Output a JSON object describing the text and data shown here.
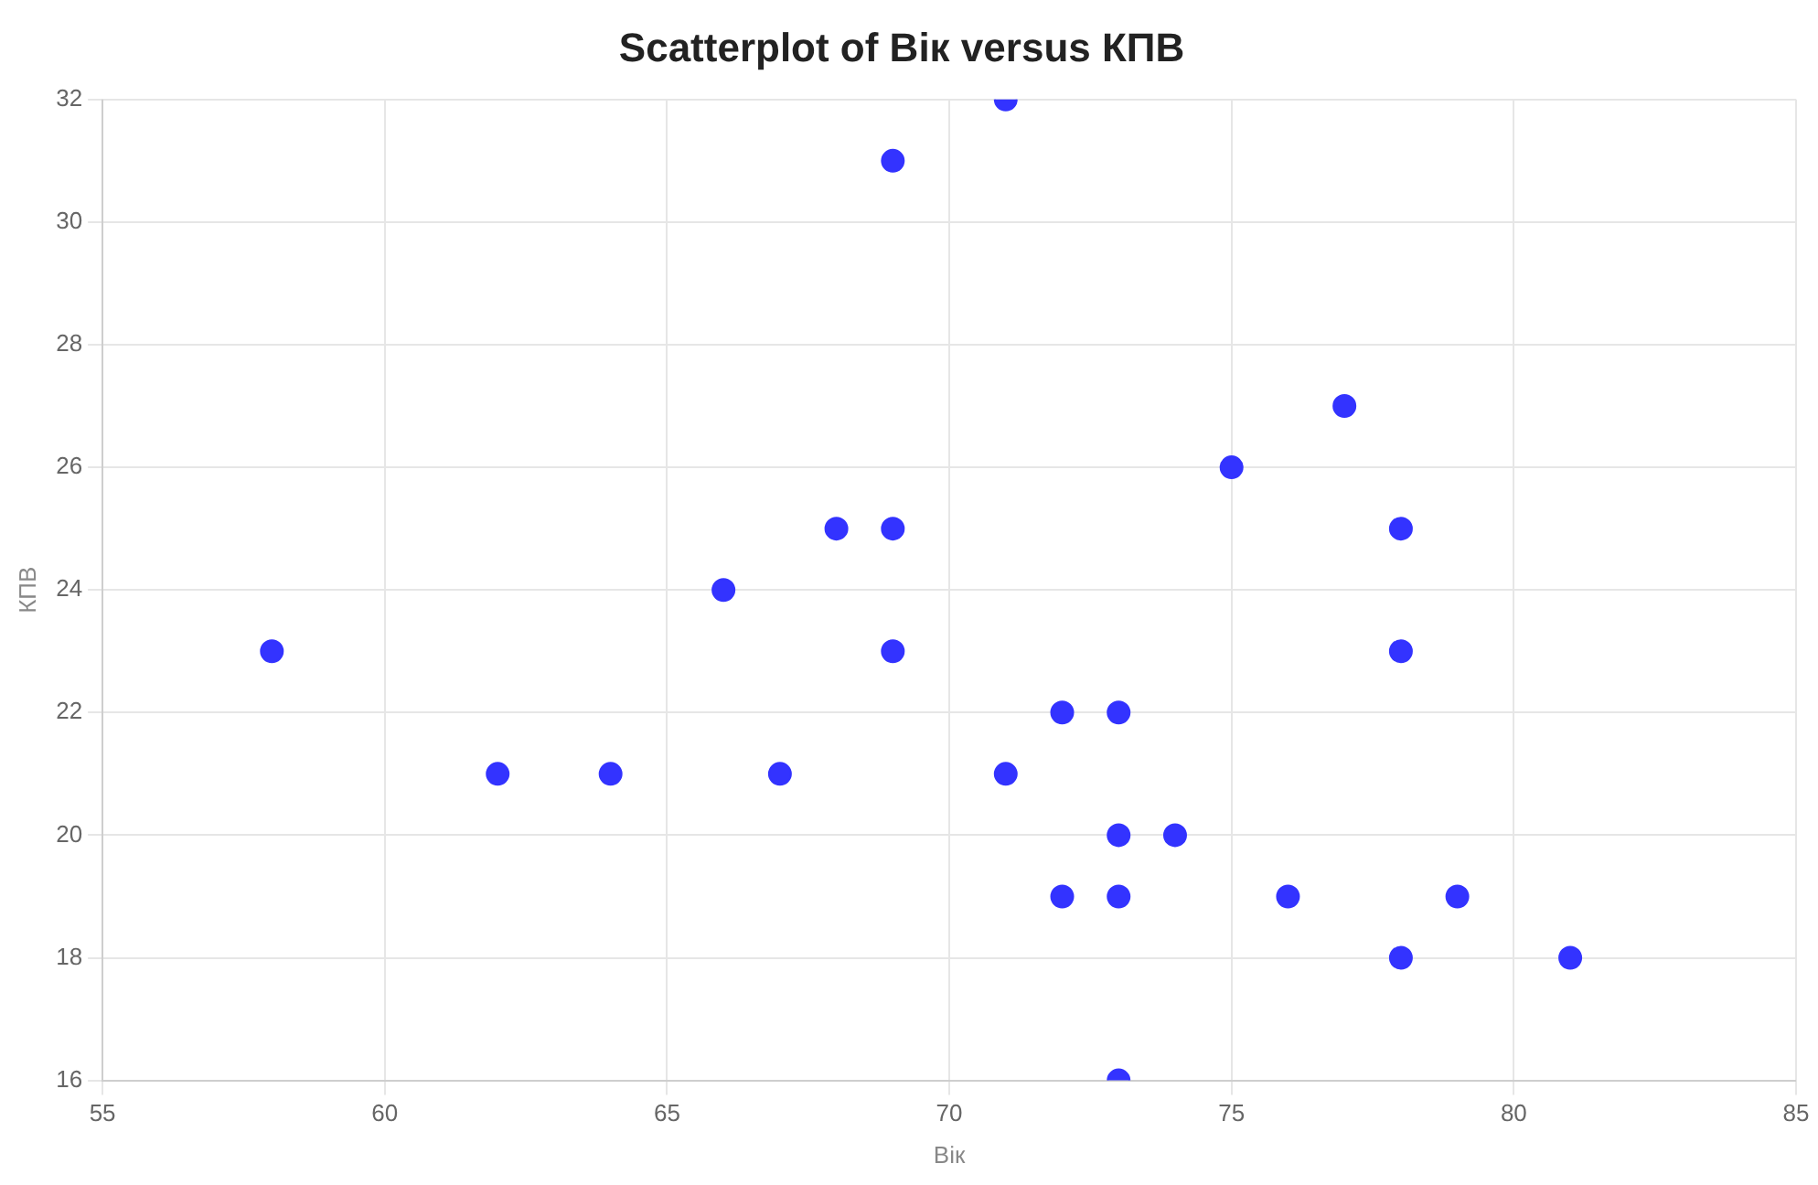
{
  "chart_data": {
    "type": "scatter",
    "title": "Scatterplot of Вік versus КПВ",
    "xlabel": "Вік",
    "ylabel": "КПВ",
    "x": [
      58,
      62,
      64,
      66,
      67,
      68,
      69,
      69,
      69,
      71,
      71,
      72,
      72,
      73,
      73,
      73,
      73,
      74,
      75,
      76,
      77,
      78,
      78,
      78,
      79,
      81
    ],
    "series": [
      {
        "color": "#3333ff",
        "values": [
          23,
          21,
          21,
          24,
          21,
          25,
          25,
          31,
          23,
          32,
          21,
          22,
          19,
          22,
          20,
          19,
          16,
          20,
          26,
          19,
          27,
          25,
          23,
          18,
          19,
          18
        ]
      }
    ],
    "xlim": [
      55,
      85
    ],
    "xticks": [
      55,
      60,
      65,
      70,
      75,
      80,
      85
    ],
    "ylim": [
      16,
      32
    ],
    "yticks": [
      16,
      18,
      20,
      22,
      24,
      26,
      28,
      30,
      32
    ],
    "grid": true,
    "legend": false,
    "marker": "circle"
  }
}
